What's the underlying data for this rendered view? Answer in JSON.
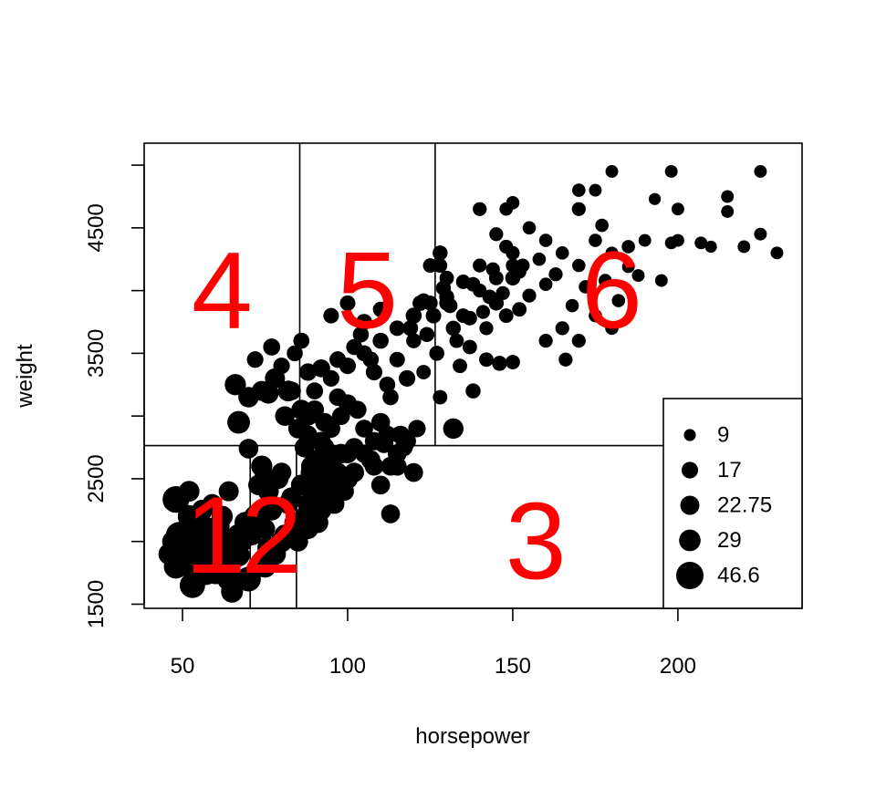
{
  "chart_data": {
    "type": "scatter",
    "title": "",
    "xlabel": "horsepower",
    "ylabel": "weight",
    "xlim": [
      38.4,
      237.6
    ],
    "ylim": [
      1467,
      5175
    ],
    "xticks": [
      50,
      100,
      150,
      200
    ],
    "yticks": [
      1500,
      2500,
      3500,
      4500
    ],
    "grid": false,
    "point_color": "#000000",
    "size_variable_legend": {
      "placement": "bottom-right",
      "entries": [
        {
          "label": "9",
          "value": 9
        },
        {
          "label": "17",
          "value": 17
        },
        {
          "label": "22.75",
          "value": 22.75
        },
        {
          "label": "29",
          "value": 29
        },
        {
          "label": "46.6",
          "value": 46.6
        }
      ]
    },
    "partition": {
      "line_color": "#000000",
      "label_color": "#ff0000",
      "weight_split": 2764,
      "top_hp_splits": [
        85.5,
        126.5
      ],
      "bottom_hp_splits": [
        70.5,
        84.5
      ],
      "regions": [
        {
          "label": "1",
          "x": 60,
          "y": 2050
        },
        {
          "label": "2",
          "x": 77,
          "y": 2050
        },
        {
          "label": "3",
          "x": 157,
          "y": 2000
        },
        {
          "label": "4",
          "x": 62,
          "y": 4000
        },
        {
          "label": "5",
          "x": 106,
          "y": 4000
        },
        {
          "label": "6",
          "x": 180,
          "y": 4000
        }
      ]
    },
    "points": [
      [
        52,
        2200,
        32
      ],
      [
        58,
        2100,
        32
      ],
      [
        65,
        2000,
        33
      ],
      [
        67,
        2050,
        31
      ],
      [
        70,
        2100,
        32
      ],
      [
        48,
        1800,
        36
      ],
      [
        50,
        1900,
        35
      ],
      [
        53,
        1850,
        34
      ],
      [
        55,
        2000,
        33
      ],
      [
        60,
        1950,
        31
      ],
      [
        46,
        1900,
        29
      ],
      [
        62,
        2200,
        28
      ],
      [
        68,
        2000,
        27
      ],
      [
        63,
        1800,
        36
      ],
      [
        57,
        1750,
        37
      ],
      [
        64,
        1700,
        33
      ],
      [
        58,
        1850,
        32
      ],
      [
        66,
        1900,
        30
      ],
      [
        69,
        2150,
        29
      ],
      [
        54,
        2100,
        30
      ],
      [
        48,
        2335,
        44
      ],
      [
        49,
        2050,
        44
      ],
      [
        52,
        1800,
        30
      ],
      [
        65,
        1600,
        30
      ],
      [
        70,
        1700,
        38
      ],
      [
        75,
        1800,
        30
      ],
      [
        53,
        1650,
        40
      ],
      [
        60,
        1750,
        32
      ],
      [
        67,
        1890,
        31
      ],
      [
        61,
        2120,
        29
      ],
      [
        47,
        2000,
        27
      ],
      [
        56,
        2250,
        27
      ],
      [
        71,
        2050,
        26
      ],
      [
        52,
        2400,
        27
      ],
      [
        64,
        2400,
        25
      ],
      [
        59,
        2300,
        24
      ],
      [
        75,
        2100,
        25
      ],
      [
        80,
        2000,
        29
      ],
      [
        82,
        2300,
        26
      ],
      [
        76,
        2400,
        27
      ],
      [
        78,
        1900,
        30
      ],
      [
        72,
        2200,
        30
      ],
      [
        74,
        2600,
        28
      ],
      [
        79,
        2500,
        26
      ],
      [
        84,
        2150,
        27
      ],
      [
        83,
        2350,
        26
      ],
      [
        81,
        2050,
        28
      ],
      [
        77,
        2250,
        27
      ],
      [
        73,
        2450,
        26
      ],
      [
        85,
        2000,
        25
      ],
      [
        80,
        2550,
        24
      ],
      [
        76,
        1950,
        30
      ],
      [
        88,
        2300,
        26
      ],
      [
        90,
        2400,
        27
      ],
      [
        92,
        2500,
        26
      ],
      [
        95,
        2600,
        25
      ],
      [
        98,
        2700,
        24
      ],
      [
        100,
        2500,
        26
      ],
      [
        89,
        2550,
        28
      ],
      [
        91,
        2350,
        27
      ],
      [
        93,
        2450,
        28
      ],
      [
        96,
        2300,
        25
      ],
      [
        94,
        2650,
        25
      ],
      [
        97,
        2550,
        24
      ],
      [
        99,
        2400,
        23
      ],
      [
        87,
        2200,
        25
      ],
      [
        86,
        2450,
        27
      ],
      [
        90,
        2650,
        24
      ],
      [
        88,
        2100,
        26
      ],
      [
        92,
        2250,
        26
      ],
      [
        95,
        2450,
        25
      ],
      [
        93,
        2750,
        24
      ],
      [
        91,
        2150,
        27
      ],
      [
        89,
        2600,
        26
      ],
      [
        94,
        2350,
        26
      ],
      [
        96,
        2500,
        25
      ],
      [
        98,
        2400,
        24
      ],
      [
        100,
        2700,
        23
      ],
      [
        102,
        2550,
        24
      ],
      [
        87,
        2750,
        25
      ],
      [
        92,
        2800,
        22
      ],
      [
        95,
        2900,
        21
      ],
      [
        98,
        3000,
        20
      ],
      [
        100,
        3100,
        21
      ],
      [
        102,
        2750,
        22
      ],
      [
        105,
        2900,
        20
      ],
      [
        108,
        2800,
        21
      ],
      [
        110,
        2950,
        22
      ],
      [
        112,
        2850,
        21
      ],
      [
        115,
        2700,
        22
      ],
      [
        88,
        3000,
        23
      ],
      [
        90,
        3050,
        22
      ],
      [
        93,
        2950,
        22
      ],
      [
        97,
        3150,
        19
      ],
      [
        85,
        2900,
        24
      ],
      [
        103,
        3050,
        20
      ],
      [
        107,
        2650,
        23
      ],
      [
        113,
        2600,
        22
      ],
      [
        118,
        2800,
        20
      ],
      [
        121,
        2900,
        19
      ],
      [
        90,
        3200,
        18
      ],
      [
        95,
        3300,
        17
      ],
      [
        100,
        3400,
        17
      ],
      [
        105,
        3500,
        16
      ],
      [
        110,
        3600,
        16
      ],
      [
        115,
        3700,
        15
      ],
      [
        120,
        3800,
        16
      ],
      [
        125,
        3900,
        14
      ],
      [
        95,
        3800,
        15
      ],
      [
        100,
        3900,
        15
      ],
      [
        105,
        3750,
        16
      ],
      [
        110,
        3850,
        15
      ],
      [
        107,
        3450,
        16
      ],
      [
        104,
        3650,
        16
      ],
      [
        108,
        3350,
        17
      ],
      [
        112,
        3250,
        16
      ],
      [
        118,
        3300,
        17
      ],
      [
        97,
        3450,
        17
      ],
      [
        102,
        3550,
        16
      ],
      [
        113,
        3150,
        16
      ],
      [
        66,
        3250,
        28
      ],
      [
        70,
        3150,
        26
      ],
      [
        74,
        3200,
        25
      ],
      [
        78,
        3300,
        25
      ],
      [
        82,
        3200,
        27
      ],
      [
        77,
        3550,
        18
      ],
      [
        80,
        3400,
        17
      ],
      [
        84,
        3500,
        16
      ],
      [
        88,
        3350,
        19
      ],
      [
        86,
        3600,
        16
      ],
      [
        76,
        3180,
        26
      ],
      [
        67,
        2950,
        32
      ],
      [
        72,
        3450,
        17
      ],
      [
        81,
        3000,
        24
      ],
      [
        86,
        3050,
        25
      ],
      [
        70,
        2740,
        24
      ],
      [
        83,
        3200,
        22
      ],
      [
        92,
        3380,
        20
      ],
      [
        75,
        2500,
        30
      ],
      [
        88,
        2850,
        22
      ],
      [
        130,
        3900,
        14
      ],
      [
        135,
        3800,
        13
      ],
      [
        140,
        4200,
        12
      ],
      [
        145,
        4100,
        13
      ],
      [
        150,
        4300,
        12
      ],
      [
        155,
        4500,
        11
      ],
      [
        160,
        4400,
        11
      ],
      [
        130,
        4100,
        13
      ],
      [
        140,
        4000,
        12
      ],
      [
        150,
        4200,
        12
      ],
      [
        145,
        3900,
        14
      ],
      [
        138,
        4050,
        13
      ],
      [
        142,
        3700,
        12
      ],
      [
        148,
        4350,
        12
      ],
      [
        152,
        4150,
        12
      ],
      [
        137,
        3550,
        13
      ],
      [
        142,
        3450,
        13
      ],
      [
        134,
        3400,
        13
      ],
      [
        146,
        3420,
        14
      ],
      [
        150,
        3430,
        13
      ],
      [
        138,
        3200,
        14
      ],
      [
        128,
        3150,
        13
      ],
      [
        123,
        3350,
        13
      ],
      [
        127,
        3500,
        14
      ],
      [
        133,
        3600,
        13
      ],
      [
        148,
        3800,
        13
      ],
      [
        152,
        3850,
        13
      ],
      [
        143,
        3950,
        13
      ],
      [
        150,
        4100,
        14
      ],
      [
        145,
        4450,
        12
      ],
      [
        140,
        4650,
        12
      ],
      [
        148,
        4650,
        11
      ],
      [
        150,
        4700,
        11
      ],
      [
        153,
        4200,
        12
      ],
      [
        165,
        4300,
        11
      ],
      [
        170,
        4200,
        11
      ],
      [
        175,
        4400,
        11
      ],
      [
        180,
        4300,
        10
      ],
      [
        190,
        4400,
        10
      ],
      [
        200,
        4400,
        10
      ],
      [
        210,
        4350,
        9
      ],
      [
        220,
        4350,
        10
      ],
      [
        225,
        4450,
        10
      ],
      [
        230,
        4300,
        10
      ],
      [
        165,
        3700,
        12
      ],
      [
        170,
        3600,
        12
      ],
      [
        175,
        3800,
        11
      ],
      [
        180,
        3700,
        11
      ],
      [
        160,
        3600,
        12
      ],
      [
        166,
        3450,
        12
      ],
      [
        175,
        4800,
        10
      ],
      [
        180,
        4950,
        10
      ],
      [
        198,
        4950,
        10
      ],
      [
        225,
        4950,
        10
      ],
      [
        170,
        4650,
        12
      ],
      [
        170,
        4800,
        11
      ],
      [
        200,
        4650,
        10
      ],
      [
        207,
        4380,
        10
      ],
      [
        215,
        4750,
        10
      ],
      [
        215,
        4630,
        10
      ],
      [
        193,
        4730,
        9
      ],
      [
        177,
        4520,
        11
      ],
      [
        185,
        4350,
        11
      ],
      [
        198,
        4380,
        10
      ],
      [
        125,
        4200,
        13
      ],
      [
        128,
        4300,
        14
      ],
      [
        122,
        3900,
        15
      ],
      [
        119,
        3700,
        15
      ],
      [
        124,
        3650,
        14
      ],
      [
        126,
        3800,
        15
      ],
      [
        120,
        3600,
        14
      ],
      [
        115,
        3450,
        15
      ],
      [
        130,
        3950,
        14
      ],
      [
        132,
        3700,
        14
      ],
      [
        132,
        2900,
        26
      ],
      [
        113,
        2220,
        22
      ],
      [
        110,
        2450,
        22
      ],
      [
        115,
        2600,
        22
      ],
      [
        105,
        2700,
        21
      ],
      [
        120,
        2550,
        22
      ],
      [
        117,
        2750,
        20
      ],
      [
        108,
        2600,
        22
      ],
      [
        111,
        2780,
        22
      ],
      [
        116,
        2850,
        21
      ],
      [
        128,
        4200,
        13
      ],
      [
        123,
        3920,
        13
      ],
      [
        131,
        3880,
        14
      ],
      [
        129,
        4020,
        14
      ],
      [
        135,
        4070,
        13
      ],
      [
        137,
        3780,
        13
      ],
      [
        141,
        3830,
        12
      ],
      [
        144,
        4170,
        12
      ],
      [
        147,
        3980,
        12
      ],
      [
        155,
        3960,
        12
      ],
      [
        158,
        4250,
        11
      ],
      [
        160,
        4050,
        11
      ],
      [
        163,
        4130,
        12
      ],
      [
        168,
        3880,
        11
      ],
      [
        172,
        4030,
        11
      ],
      [
        178,
        4080,
        11
      ],
      [
        182,
        3920,
        11
      ],
      [
        185,
        4190,
        10
      ],
      [
        188,
        4120,
        10
      ],
      [
        195,
        4080,
        10
      ]
    ]
  }
}
